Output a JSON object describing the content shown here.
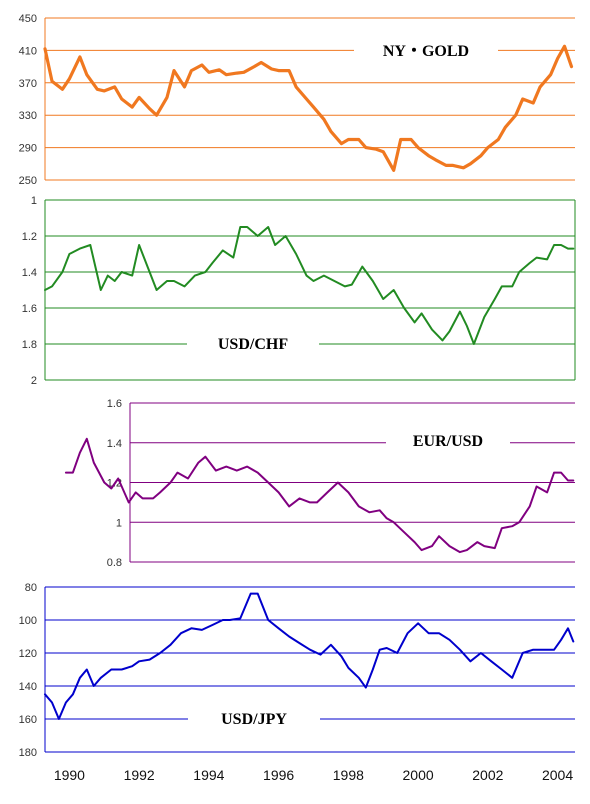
{
  "x_axis": {
    "tick_labels": [
      "1990",
      "1992",
      "1994",
      "1996",
      "1998",
      "2000",
      "2002",
      "2004"
    ],
    "tick_years": [
      1990,
      1992,
      1994,
      1996,
      1998,
      2000,
      2002,
      2004
    ],
    "range": [
      1989.3,
      2004.5
    ]
  },
  "chart_data": [
    {
      "type": "line",
      "title": "NY・GOLD",
      "color": "#F07820",
      "ylim": [
        250,
        450
      ],
      "y_inverted": false,
      "yticks": [
        250,
        290,
        330,
        370,
        410,
        450
      ],
      "ytick_labels": [
        "250",
        "290",
        "330",
        "370",
        "410",
        "450"
      ],
      "x": [
        1989.3,
        1989.5,
        1989.8,
        1990.0,
        1990.3,
        1990.5,
        1990.8,
        1991.0,
        1991.3,
        1991.5,
        1991.8,
        1992.0,
        1992.3,
        1992.5,
        1992.8,
        1993.0,
        1993.3,
        1993.5,
        1993.8,
        1994.0,
        1994.3,
        1994.5,
        1994.8,
        1995.0,
        1995.3,
        1995.5,
        1995.8,
        1996.0,
        1996.3,
        1996.5,
        1996.8,
        1997.0,
        1997.3,
        1997.5,
        1997.8,
        1998.0,
        1998.3,
        1998.5,
        1998.8,
        1999.0,
        1999.3,
        1999.5,
        1999.8,
        2000.0,
        2000.3,
        2000.5,
        2000.8,
        2001.0,
        2001.3,
        2001.5,
        2001.8,
        2002.0,
        2002.3,
        2002.5,
        2002.8,
        2003.0,
        2003.3,
        2003.5,
        2003.8,
        2004.0,
        2004.2,
        2004.4
      ],
      "y": [
        412,
        372,
        362,
        375,
        402,
        380,
        362,
        360,
        365,
        350,
        340,
        352,
        338,
        330,
        352,
        385,
        365,
        385,
        392,
        383,
        386,
        380,
        382,
        383,
        390,
        395,
        387,
        385,
        385,
        365,
        350,
        340,
        325,
        310,
        295,
        300,
        300,
        290,
        288,
        285,
        262,
        300,
        300,
        290,
        280,
        275,
        268,
        268,
        265,
        270,
        280,
        290,
        300,
        315,
        330,
        350,
        345,
        365,
        380,
        400,
        415,
        390
      ]
    },
    {
      "type": "line",
      "title": "USD/CHF",
      "color": "#228B22",
      "ylim": [
        1,
        2
      ],
      "y_inverted": true,
      "yticks": [
        1,
        1.2,
        1.4,
        1.6,
        1.8,
        2
      ],
      "ytick_labels": [
        "1",
        "1.2",
        "1.4",
        "1.6",
        "1.8",
        "2"
      ],
      "x": [
        1989.3,
        1989.5,
        1989.8,
        1990.0,
        1990.3,
        1990.6,
        1990.9,
        1991.1,
        1991.3,
        1991.5,
        1991.8,
        1992.0,
        1992.2,
        1992.5,
        1992.8,
        1993.0,
        1993.3,
        1993.6,
        1993.9,
        1994.1,
        1994.4,
        1994.7,
        1994.9,
        1995.1,
        1995.4,
        1995.7,
        1995.9,
        1996.2,
        1996.5,
        1996.8,
        1997.0,
        1997.3,
        1997.6,
        1997.9,
        1998.1,
        1998.4,
        1998.7,
        1999.0,
        1999.3,
        1999.6,
        1999.9,
        2000.1,
        2000.4,
        2000.7,
        2000.9,
        2001.2,
        2001.4,
        2001.6,
        2001.9,
        2002.2,
        2002.4,
        2002.7,
        2002.9,
        2003.2,
        2003.4,
        2003.7,
        2003.9,
        2004.1,
        2004.3,
        2004.45
      ],
      "y": [
        1.5,
        1.48,
        1.4,
        1.3,
        1.27,
        1.25,
        1.5,
        1.42,
        1.45,
        1.4,
        1.42,
        1.25,
        1.35,
        1.5,
        1.45,
        1.45,
        1.48,
        1.42,
        1.4,
        1.35,
        1.28,
        1.32,
        1.15,
        1.15,
        1.2,
        1.15,
        1.25,
        1.2,
        1.3,
        1.42,
        1.45,
        1.42,
        1.45,
        1.48,
        1.47,
        1.37,
        1.45,
        1.55,
        1.5,
        1.6,
        1.68,
        1.63,
        1.72,
        1.78,
        1.73,
        1.62,
        1.7,
        1.8,
        1.65,
        1.55,
        1.48,
        1.48,
        1.4,
        1.35,
        1.32,
        1.33,
        1.25,
        1.25,
        1.27,
        1.27
      ]
    },
    {
      "type": "line",
      "title": "EUR/USD",
      "color": "#800080",
      "ylim": [
        0.8,
        1.6
      ],
      "y_inverted": false,
      "yticks": [
        0.8,
        1,
        1.2,
        1.4,
        1.6
      ],
      "ytick_labels": [
        "0.8",
        "1",
        "1.2",
        "1.4",
        "1.6"
      ],
      "x": [
        1989.9,
        1990.1,
        1990.3,
        1990.5,
        1990.7,
        1991.0,
        1991.2,
        1991.4,
        1991.7,
        1991.9,
        1992.1,
        1992.4,
        1992.6,
        1992.9,
        1993.1,
        1993.4,
        1993.7,
        1993.9,
        1994.2,
        1994.5,
        1994.8,
        1995.1,
        1995.4,
        1995.7,
        1996.0,
        1996.3,
        1996.6,
        1996.9,
        1997.1,
        1997.4,
        1997.7,
        1998.0,
        1998.3,
        1998.6,
        1998.9,
        1999.1,
        1999.3,
        1999.6,
        1999.9,
        2000.1,
        2000.4,
        2000.6,
        2000.9,
        2001.2,
        2001.4,
        2001.7,
        2001.9,
        2002.2,
        2002.4,
        2002.7,
        2002.9,
        2003.2,
        2003.4,
        2003.7,
        2003.9,
        2004.1,
        2004.3,
        2004.45
      ],
      "y": [
        1.25,
        1.25,
        1.35,
        1.42,
        1.3,
        1.2,
        1.17,
        1.22,
        1.1,
        1.15,
        1.12,
        1.12,
        1.15,
        1.2,
        1.25,
        1.22,
        1.3,
        1.33,
        1.26,
        1.28,
        1.26,
        1.28,
        1.25,
        1.2,
        1.15,
        1.08,
        1.12,
        1.1,
        1.1,
        1.15,
        1.2,
        1.15,
        1.08,
        1.05,
        1.06,
        1.02,
        1.0,
        0.95,
        0.9,
        0.86,
        0.88,
        0.93,
        0.88,
        0.85,
        0.86,
        0.9,
        0.88,
        0.87,
        0.97,
        0.98,
        1.0,
        1.08,
        1.18,
        1.15,
        1.25,
        1.25,
        1.21,
        1.21
      ]
    },
    {
      "type": "line",
      "title": "USD/JPY",
      "color": "#0000CC",
      "ylim": [
        80,
        180
      ],
      "y_inverted": true,
      "yticks": [
        80,
        100,
        120,
        140,
        160,
        180
      ],
      "ytick_labels": [
        "80",
        "100",
        "120",
        "140",
        "160",
        "180"
      ],
      "x": [
        1989.3,
        1989.5,
        1989.7,
        1989.9,
        1990.1,
        1990.3,
        1990.5,
        1990.7,
        1990.9,
        1991.2,
        1991.5,
        1991.8,
        1992.0,
        1992.3,
        1992.6,
        1992.9,
        1993.2,
        1993.5,
        1993.8,
        1994.1,
        1994.4,
        1994.6,
        1994.9,
        1995.2,
        1995.4,
        1995.7,
        1996.0,
        1996.3,
        1996.6,
        1996.9,
        1997.2,
        1997.5,
        1997.8,
        1998.0,
        1998.3,
        1998.5,
        1998.7,
        1998.9,
        1999.1,
        1999.4,
        1999.7,
        2000.0,
        2000.3,
        2000.6,
        2000.9,
        2001.2,
        2001.5,
        2001.8,
        2002.1,
        2002.4,
        2002.7,
        2003.0,
        2003.3,
        2003.6,
        2003.9,
        2004.1,
        2004.3,
        2004.45
      ],
      "y": [
        145,
        150,
        160,
        150,
        145,
        135,
        130,
        140,
        135,
        130,
        130,
        128,
        125,
        124,
        120,
        115,
        108,
        105,
        106,
        103,
        100,
        100,
        99,
        84,
        84,
        100,
        105,
        110,
        114,
        118,
        121,
        115,
        122,
        129,
        135,
        141,
        130,
        118,
        117,
        120,
        108,
        102,
        108,
        108,
        112,
        118,
        125,
        120,
        125,
        130,
        135,
        120,
        118,
        118,
        118,
        112,
        105,
        113
      ]
    }
  ]
}
